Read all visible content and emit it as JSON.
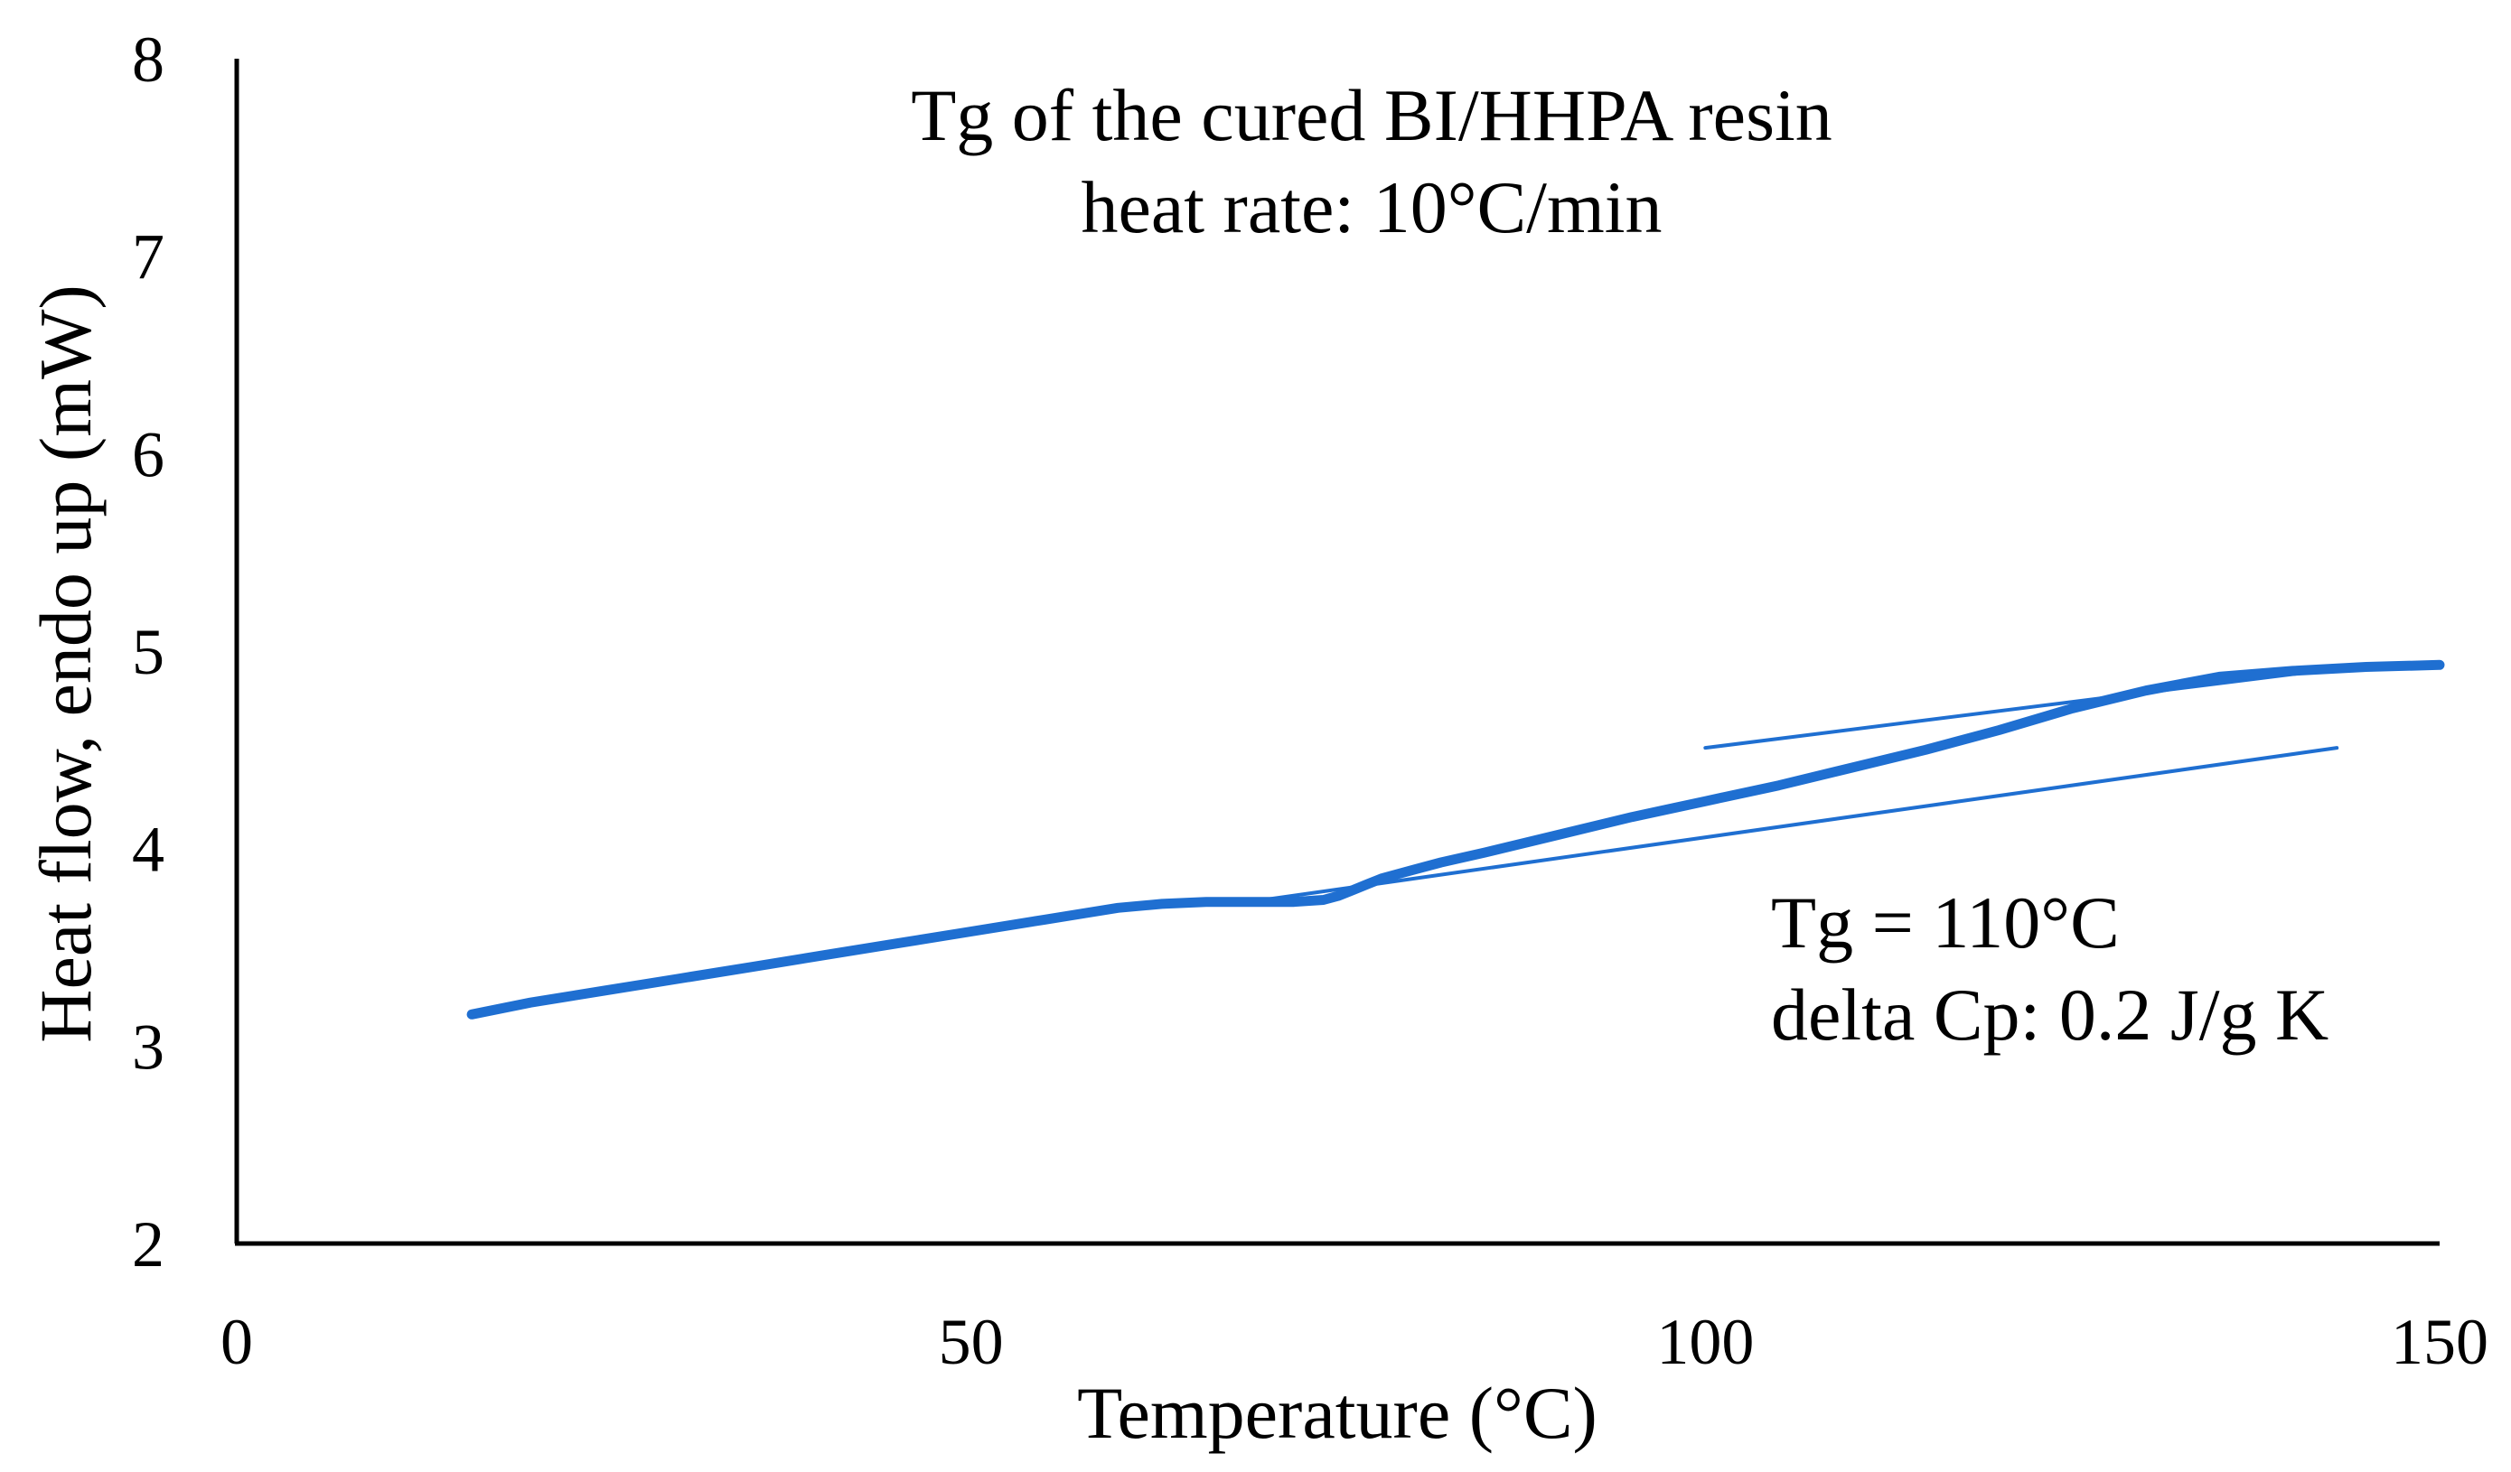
{
  "colors": {
    "series": "#1f6fd1",
    "axis": "#000000",
    "background": "#ffffff"
  },
  "chart_data": {
    "type": "line",
    "title": "Tg of the cured BI/HHPA resin",
    "subtitle": "heat rate: 10°C/min",
    "xlabel": "Temperature (°C)",
    "ylabel": "Heat flow, endo up (mW)",
    "xlim": [
      0,
      150
    ],
    "ylim": [
      2,
      8
    ],
    "x_ticks": [
      "0",
      "50",
      "100",
      "150"
    ],
    "y_ticks": [
      "2",
      "3",
      "4",
      "5",
      "6",
      "7",
      "8"
    ],
    "grid": false,
    "legend": "none",
    "annotations": [
      "Tg = 110°C",
      "delta Cp: 0.2 J/g K"
    ],
    "series": [
      {
        "x": [
          16,
          20,
          25,
          30,
          35,
          40,
          45,
          50,
          55,
          60,
          63,
          66,
          68,
          70,
          72,
          74,
          75,
          76,
          77,
          78,
          80,
          82,
          85,
          90,
          95,
          100,
          105,
          110,
          115,
          120,
          125,
          130,
          135,
          140,
          145,
          150
        ],
        "values": [
          3.16,
          3.22,
          3.28,
          3.34,
          3.4,
          3.46,
          3.52,
          3.58,
          3.64,
          3.7,
          3.72,
          3.73,
          3.73,
          3.73,
          3.73,
          3.74,
          3.76,
          3.79,
          3.82,
          3.85,
          3.89,
          3.93,
          3.98,
          4.07,
          4.16,
          4.24,
          4.32,
          4.41,
          4.5,
          4.6,
          4.71,
          4.8,
          4.87,
          4.9,
          4.92,
          4.93
        ]
      }
    ],
    "tangents": [
      {
        "x": [
          68,
          143
        ],
        "values": [
          3.72,
          4.51
        ]
      },
      {
        "x": [
          100,
          145
        ],
        "values": [
          4.51,
          4.93
        ]
      }
    ]
  }
}
